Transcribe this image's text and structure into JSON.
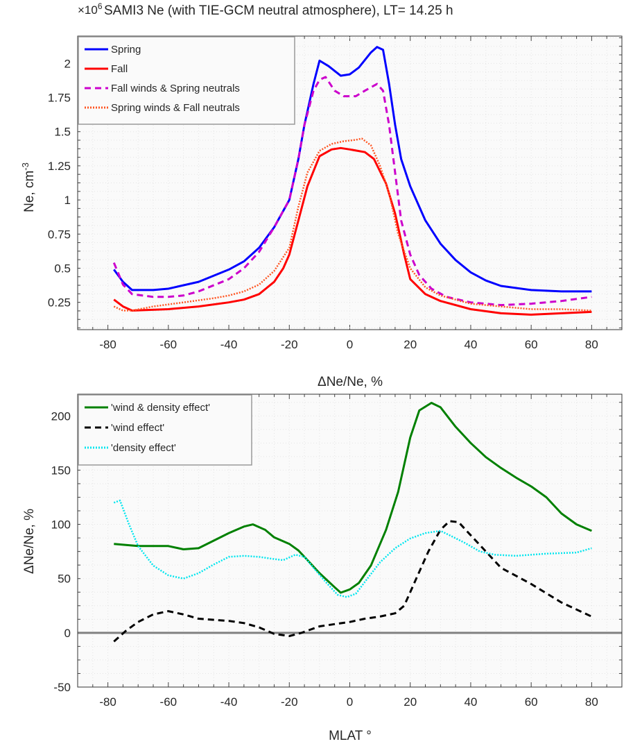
{
  "chart_data": [
    {
      "type": "line",
      "title": "SAMI3 Ne (with TIE-GCM neutral atmosphere), LT= 14.25 h",
      "multiplier_label": "×10^6",
      "xlabel": "",
      "ylabel": "Ne, cm^-3",
      "xlim": [
        -90,
        90
      ],
      "ylim": [
        0.05,
        2.2
      ],
      "xticks": [
        -80,
        -60,
        -40,
        -20,
        0,
        20,
        40,
        60,
        80
      ],
      "yticks": [
        0.25,
        0.5,
        0.75,
        1,
        1.25,
        1.5,
        1.75,
        2
      ],
      "ytick_labels": [
        "0.25",
        "0.5",
        "0.75",
        "1",
        "1.25",
        "1.5",
        "1.75",
        "2"
      ],
      "grid": true,
      "legend": "top-left",
      "series": [
        {
          "name": "Spring",
          "color": "#0000ff",
          "style": "solid",
          "x": [
            -78,
            -75,
            -72,
            -65,
            -60,
            -50,
            -40,
            -35,
            -30,
            -25,
            -20,
            -17,
            -15,
            -12,
            -10,
            -7,
            -3,
            0,
            3,
            7,
            9,
            11,
            13,
            15,
            17,
            20,
            25,
            30,
            35,
            40,
            45,
            50,
            60,
            70,
            80
          ],
          "y": [
            0.49,
            0.4,
            0.34,
            0.34,
            0.35,
            0.4,
            0.49,
            0.55,
            0.65,
            0.8,
            1.0,
            1.3,
            1.55,
            1.85,
            2.02,
            1.98,
            1.91,
            1.92,
            1.97,
            2.08,
            2.12,
            2.1,
            1.85,
            1.55,
            1.3,
            1.1,
            0.85,
            0.68,
            0.56,
            0.47,
            0.41,
            0.37,
            0.34,
            0.33,
            0.33
          ]
        },
        {
          "name": "Fall",
          "color": "#ff0000",
          "style": "solid",
          "x": [
            -78,
            -75,
            -72,
            -60,
            -50,
            -40,
            -35,
            -30,
            -25,
            -22,
            -20,
            -17,
            -14,
            -10,
            -6,
            -3,
            0,
            5,
            8,
            12,
            15,
            18,
            20,
            25,
            30,
            40,
            50,
            60,
            70,
            80
          ],
          "y": [
            0.27,
            0.22,
            0.19,
            0.2,
            0.22,
            0.25,
            0.27,
            0.31,
            0.4,
            0.5,
            0.6,
            0.85,
            1.1,
            1.32,
            1.37,
            1.38,
            1.37,
            1.35,
            1.3,
            1.12,
            0.9,
            0.6,
            0.42,
            0.31,
            0.26,
            0.2,
            0.17,
            0.16,
            0.17,
            0.18
          ]
        },
        {
          "name": "Fall winds & Spring neutrals",
          "color": "#cc00cc",
          "style": "dashed",
          "x": [
            -78,
            -75,
            -72,
            -65,
            -60,
            -55,
            -50,
            -40,
            -35,
            -30,
            -25,
            -20,
            -17,
            -15,
            -12,
            -10,
            -8,
            -5,
            -2,
            2,
            5,
            9,
            11,
            13,
            15,
            17,
            20,
            23,
            27,
            32,
            40,
            50,
            60,
            70,
            80
          ],
          "y": [
            0.54,
            0.38,
            0.31,
            0.29,
            0.29,
            0.3,
            0.33,
            0.42,
            0.5,
            0.62,
            0.8,
            1.0,
            1.3,
            1.55,
            1.8,
            1.88,
            1.9,
            1.8,
            1.76,
            1.76,
            1.8,
            1.85,
            1.8,
            1.55,
            1.2,
            0.85,
            0.6,
            0.45,
            0.35,
            0.29,
            0.25,
            0.23,
            0.24,
            0.26,
            0.29
          ]
        },
        {
          "name": "Spring winds & Fall neutrals",
          "color": "#ff5522",
          "style": "dotted",
          "x": [
            -78,
            -75,
            -72,
            -65,
            -55,
            -45,
            -40,
            -35,
            -30,
            -25,
            -20,
            -17,
            -14,
            -10,
            -6,
            -2,
            2,
            4,
            7,
            10,
            13,
            16,
            20,
            25,
            30,
            40,
            50,
            60,
            70,
            80
          ],
          "y": [
            0.22,
            0.19,
            0.19,
            0.22,
            0.25,
            0.28,
            0.3,
            0.33,
            0.38,
            0.48,
            0.65,
            0.95,
            1.2,
            1.36,
            1.41,
            1.43,
            1.44,
            1.45,
            1.4,
            1.25,
            1.05,
            0.75,
            0.5,
            0.36,
            0.3,
            0.24,
            0.22,
            0.2,
            0.2,
            0.19
          ]
        }
      ]
    },
    {
      "type": "line",
      "title": "ΔNe/Ne, %",
      "xlabel": "MLAT °",
      "ylabel": "ΔNe/Ne, %",
      "xlim": [
        -90,
        90
      ],
      "ylim": [
        -50,
        220
      ],
      "xticks": [
        -80,
        -60,
        -40,
        -20,
        0,
        20,
        40,
        60,
        80
      ],
      "yticks": [
        -50,
        0,
        50,
        100,
        150,
        200
      ],
      "ytick_labels": [
        "-50",
        "0",
        "50",
        "100",
        "150",
        "200"
      ],
      "grid": true,
      "legend": "top-left",
      "zero_line_color": "#808080",
      "series": [
        {
          "name": "'wind & density effect'",
          "color": "#008000",
          "style": "solid",
          "x": [
            -78,
            -70,
            -60,
            -55,
            -50,
            -45,
            -40,
            -35,
            -32,
            -28,
            -25,
            -20,
            -17,
            -15,
            -10,
            -5,
            -3,
            0,
            3,
            7,
            12,
            16,
            20,
            23,
            27,
            30,
            35,
            40,
            45,
            50,
            55,
            60,
            65,
            70,
            75,
            80
          ],
          "y": [
            82,
            80,
            80,
            77,
            78,
            85,
            92,
            98,
            100,
            95,
            88,
            82,
            76,
            70,
            55,
            42,
            37,
            40,
            46,
            62,
            95,
            130,
            180,
            205,
            212,
            208,
            190,
            175,
            162,
            152,
            143,
            135,
            125,
            110,
            100,
            94
          ]
        },
        {
          "name": "'wind effect'",
          "color": "#000000",
          "style": "dashed",
          "x": [
            -78,
            -74,
            -70,
            -65,
            -60,
            -55,
            -50,
            -40,
            -35,
            -30,
            -25,
            -20,
            -16,
            -10,
            -5,
            0,
            5,
            10,
            15,
            18,
            22,
            26,
            30,
            33,
            36,
            40,
            45,
            50,
            60,
            70,
            80
          ],
          "y": [
            -8,
            2,
            10,
            17,
            20,
            17,
            13,
            11,
            9,
            5,
            -1,
            -3,
            0,
            6,
            8,
            10,
            13,
            15,
            18,
            25,
            50,
            75,
            95,
            103,
            102,
            90,
            75,
            60,
            45,
            28,
            15
          ]
        },
        {
          "name": "'density effect'",
          "color": "#00e5ee",
          "style": "dotted",
          "x": [
            -78,
            -76,
            -73,
            -70,
            -65,
            -60,
            -55,
            -50,
            -45,
            -40,
            -35,
            -30,
            -25,
            -22,
            -18,
            -15,
            -12,
            -8,
            -4,
            -1,
            2,
            5,
            10,
            15,
            20,
            25,
            30,
            33,
            38,
            43,
            48,
            55,
            65,
            75,
            80
          ],
          "y": [
            120,
            122,
            100,
            80,
            62,
            53,
            50,
            55,
            63,
            70,
            71,
            70,
            68,
            67,
            72,
            70,
            60,
            47,
            35,
            33,
            36,
            47,
            65,
            78,
            87,
            92,
            94,
            90,
            83,
            75,
            72,
            71,
            73,
            74,
            78
          ]
        }
      ]
    }
  ]
}
